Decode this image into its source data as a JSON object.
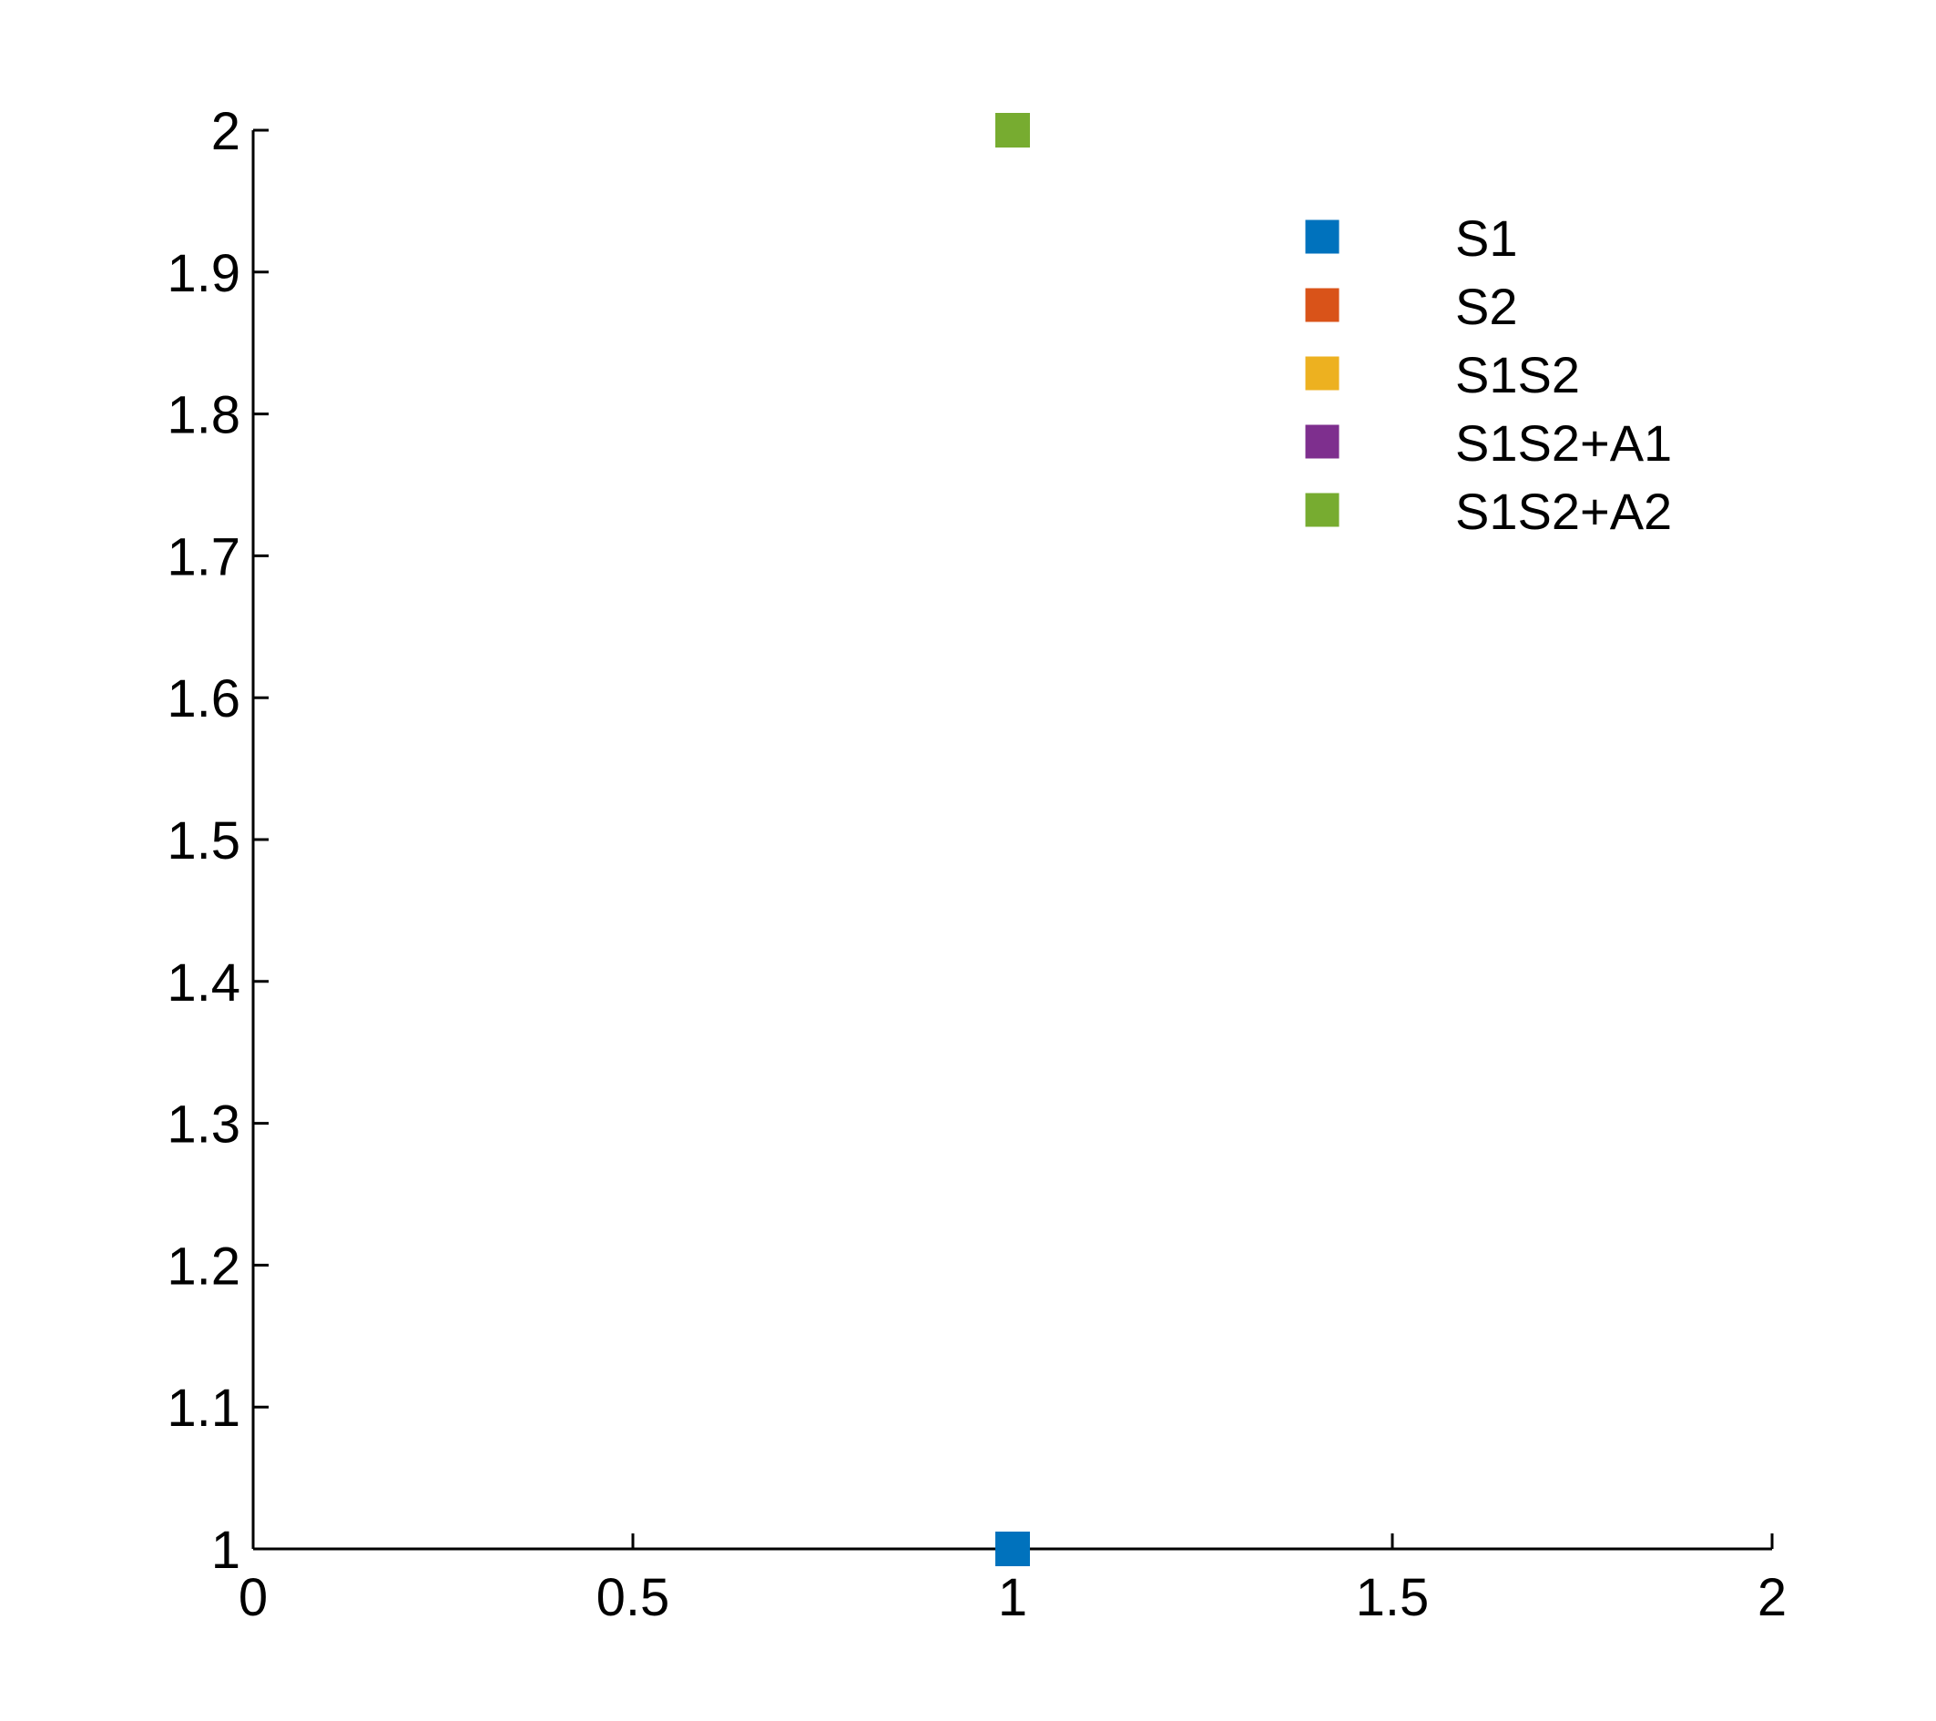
{
  "chart_data": {
    "type": "scatter",
    "xlim": [
      0,
      2
    ],
    "ylim": [
      1,
      2
    ],
    "xticks": [
      0,
      0.5,
      1,
      1.5,
      2
    ],
    "xtick_labels": [
      "0",
      "0.5",
      "1",
      "1.5",
      "2"
    ],
    "yticks": [
      1,
      1.1,
      1.2,
      1.3,
      1.4,
      1.5,
      1.6,
      1.7,
      1.8,
      1.9,
      2
    ],
    "ytick_labels": [
      "1",
      "1.1",
      "1.2",
      "1.3",
      "1.4",
      "1.5",
      "1.6",
      "1.7",
      "1.8",
      "1.9",
      "2"
    ],
    "grid": false,
    "legend_position": "top-right",
    "marker": "square",
    "series": [
      {
        "name": "S1",
        "color": "#0072BD",
        "points": [
          {
            "x": 1,
            "y": 1
          }
        ]
      },
      {
        "name": "S2",
        "color": "#D95319",
        "points": []
      },
      {
        "name": "S1S2",
        "color": "#EDB120",
        "points": []
      },
      {
        "name": "S1S2+A1",
        "color": "#7E2F8E",
        "points": []
      },
      {
        "name": "S1S2+A2",
        "color": "#77AC30",
        "points": [
          {
            "x": 1,
            "y": 2
          }
        ]
      }
    ]
  }
}
